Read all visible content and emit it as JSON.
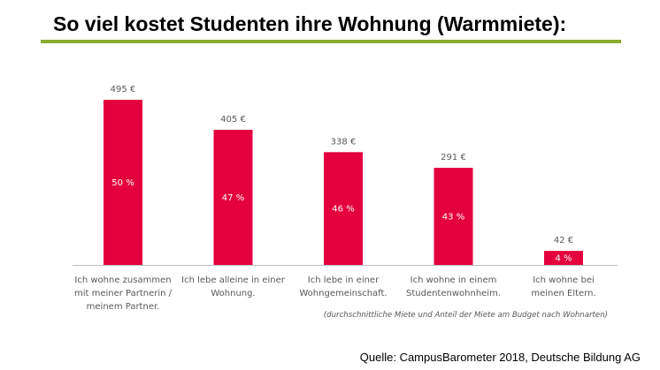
{
  "header": {
    "title": "So viel kostet Studenten ihre Wohnung (Warmmiete):",
    "rule_color": "#8aac2e"
  },
  "chart_data": {
    "type": "bar",
    "categories": [
      [
        "Ich wohne zusammen",
        "mit meiner Partnerin /",
        "meinem Partner."
      ],
      [
        "Ich lebe alleine in einer",
        "Wohnung."
      ],
      [
        "Ich lebe in einer",
        "Wohngemeinschaft."
      ],
      [
        "Ich wohne in einem",
        "Studentenwohnheim."
      ],
      [
        "Ich wohne bei",
        "meinen Eltern."
      ]
    ],
    "values": [
      495,
      405,
      338,
      291,
      42
    ],
    "value_labels": [
      "495 €",
      "405 €",
      "338 €",
      "291 €",
      "42 €"
    ],
    "share_labels": [
      "50 %",
      "47 %",
      "46 %",
      "43 %",
      "4 %"
    ],
    "bar_color": "#e4003d",
    "axis_color": "#bfbfbf",
    "grid": false,
    "legend": "none"
  },
  "footnote": "(durchschnittliche Miete und Anteil der Miete am Budget nach Wohnarten)",
  "source": "Quelle: CampusBarometer 2018, Deutsche Bildung AG"
}
